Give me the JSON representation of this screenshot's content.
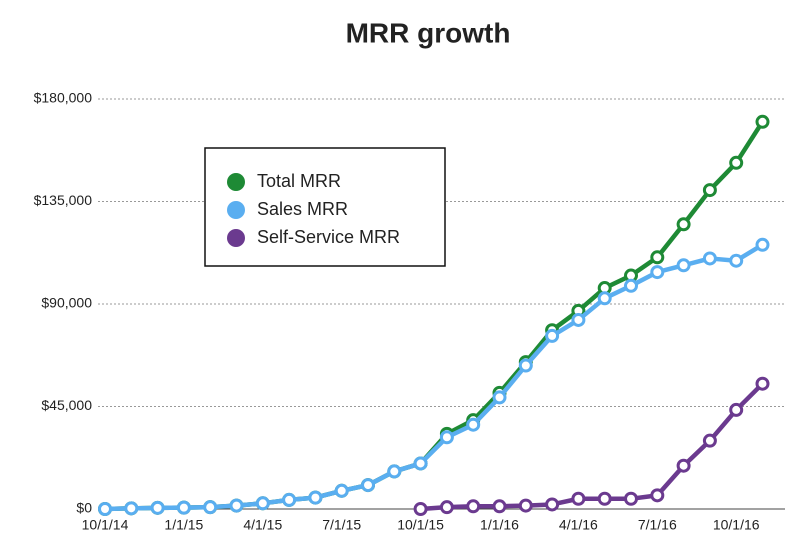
{
  "chart_data": {
    "type": "line",
    "title": "MRR growth",
    "categories": [
      "10/1/14",
      null,
      null,
      "1/1/15",
      null,
      null,
      "4/1/15",
      null,
      null,
      "7/1/15",
      null,
      null,
      "10/1/15",
      null,
      null,
      "1/1/16",
      null,
      null,
      "4/1/16",
      null,
      null,
      "7/1/16",
      null,
      null,
      "10/1/16",
      null
    ],
    "series": [
      {
        "name": "Total MRR",
        "color": "#1e8a35",
        "values": [
          0,
          300,
          500,
          600,
          800,
          1500,
          2500,
          4000,
          5000,
          8000,
          10500,
          16500,
          20000,
          33000,
          39000,
          51000,
          64500,
          78500,
          87000,
          97000,
          102500,
          110500,
          125000,
          140000,
          152000,
          170000
        ]
      },
      {
        "name": "Sales MRR",
        "color": "#5aaef0",
        "values": [
          0,
          300,
          500,
          600,
          800,
          1500,
          2500,
          4000,
          5000,
          8000,
          10500,
          16500,
          20000,
          31500,
          37000,
          49000,
          63000,
          76000,
          83000,
          92500,
          98000,
          104000,
          107000,
          110000,
          109000,
          116000
        ]
      },
      {
        "name": "Self-Service MRR",
        "color": "#6b3a8f",
        "values": [
          null,
          null,
          null,
          null,
          null,
          null,
          null,
          null,
          null,
          null,
          null,
          null,
          0,
          800,
          1200,
          1200,
          1500,
          2000,
          4500,
          4500,
          4500,
          6000,
          19000,
          30000,
          43500,
          55000
        ]
      }
    ],
    "ylim": [
      0,
      180000
    ],
    "yticks": [
      {
        "value": 0,
        "label": "$0"
      },
      {
        "value": 45000,
        "label": "$45,000"
      },
      {
        "value": 90000,
        "label": "$90,000"
      },
      {
        "value": 135000,
        "label": "$135,000"
      },
      {
        "value": 180000,
        "label": "$180,000"
      }
    ],
    "grid": true,
    "legend": "upper left"
  }
}
